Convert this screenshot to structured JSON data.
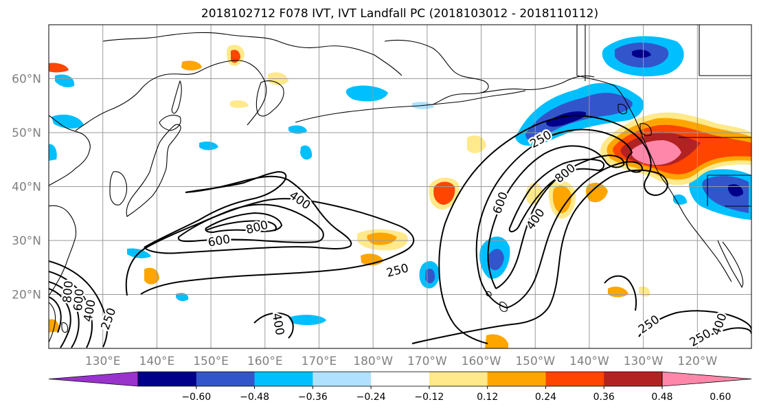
{
  "figure": {
    "title": "2018102712 F078 IVT, IVT Landfall PC (2018103012 - 2018110112)"
  },
  "map": {
    "projection": "cylindrical",
    "lon_range": [
      120,
      250
    ],
    "lat_range": [
      10,
      70
    ],
    "lat_ticks": [
      {
        "lat": 60,
        "label": "60°N"
      },
      {
        "lat": 50,
        "label": "50°N"
      },
      {
        "lat": 40,
        "label": "40°N"
      },
      {
        "lat": 30,
        "label": "30°N"
      },
      {
        "lat": 20,
        "label": "20°N"
      }
    ],
    "lon_ticks": [
      {
        "lon": 130,
        "label": "130°E"
      },
      {
        "lon": 140,
        "label": "140°E"
      },
      {
        "lon": 150,
        "label": "150°E"
      },
      {
        "lon": 160,
        "label": "160°E"
      },
      {
        "lon": 170,
        "label": "170°E"
      },
      {
        "lon": 180,
        "label": "180°W"
      },
      {
        "lon": 190,
        "label": "170°W"
      },
      {
        "lon": 200,
        "label": "160°W"
      },
      {
        "lon": 210,
        "label": "150°W"
      },
      {
        "lon": 220,
        "label": "140°W"
      },
      {
        "lon": 230,
        "label": "130°W"
      },
      {
        "lon": 240,
        "label": "120°W"
      }
    ],
    "gridlines": true,
    "contour_labels": [
      {
        "text": "400",
        "lon": 166.5,
        "lat": 37.5,
        "rot": 35
      },
      {
        "text": "800",
        "lon": 158.5,
        "lat": 32.5,
        "rot": -15
      },
      {
        "text": "600",
        "lon": 151.5,
        "lat": 30.0,
        "rot": -10
      },
      {
        "text": "250",
        "lon": 184.5,
        "lat": 24.5,
        "rot": -15
      },
      {
        "text": "250",
        "lon": 211.0,
        "lat": 48.8,
        "rot": -30
      },
      {
        "text": "800",
        "lon": 215.5,
        "lat": 42.5,
        "rot": -40
      },
      {
        "text": "600",
        "lon": 203.5,
        "lat": 37.0,
        "rot": -70
      },
      {
        "text": "400",
        "lon": 210.0,
        "lat": 34.0,
        "rot": -55
      },
      {
        "text": "250",
        "lon": 231.0,
        "lat": 14.5,
        "rot": -35
      },
      {
        "text": "400",
        "lon": 244.0,
        "lat": 14.5,
        "rot": -70
      },
      {
        "text": "250",
        "lon": 240.5,
        "lat": 12.0,
        "rot": -30
      },
      {
        "text": "400",
        "lon": 162.5,
        "lat": 14.5,
        "rot": 80
      },
      {
        "text": "250",
        "lon": 131.0,
        "lat": 15.5,
        "rot": -70
      },
      {
        "text": "400",
        "lon": 127.5,
        "lat": 17.0,
        "rot": -80
      },
      {
        "text": "600",
        "lon": 125.5,
        "lat": 19.0,
        "rot": -85
      },
      {
        "text": "800",
        "lon": 123.5,
        "lat": 20.5,
        "rot": -85
      }
    ]
  },
  "colorbar": {
    "extend": "both",
    "levels": [
      -0.6,
      -0.48,
      -0.36,
      -0.24,
      -0.12,
      0.12,
      0.24,
      0.36,
      0.48,
      0.6
    ],
    "colors": [
      "#9933cc",
      "#00008b",
      "#3355cc",
      "#00bfff",
      "#b0e2ff",
      "#ffffff",
      "#ffe98a",
      "#ffa500",
      "#ff4500",
      "#b22222",
      "#ff88aa"
    ],
    "tick_labels": [
      "−0.60",
      "−0.48",
      "−0.36",
      "−0.24",
      "−0.12",
      "0.12",
      "0.24",
      "0.36",
      "0.48",
      "0.60"
    ]
  }
}
